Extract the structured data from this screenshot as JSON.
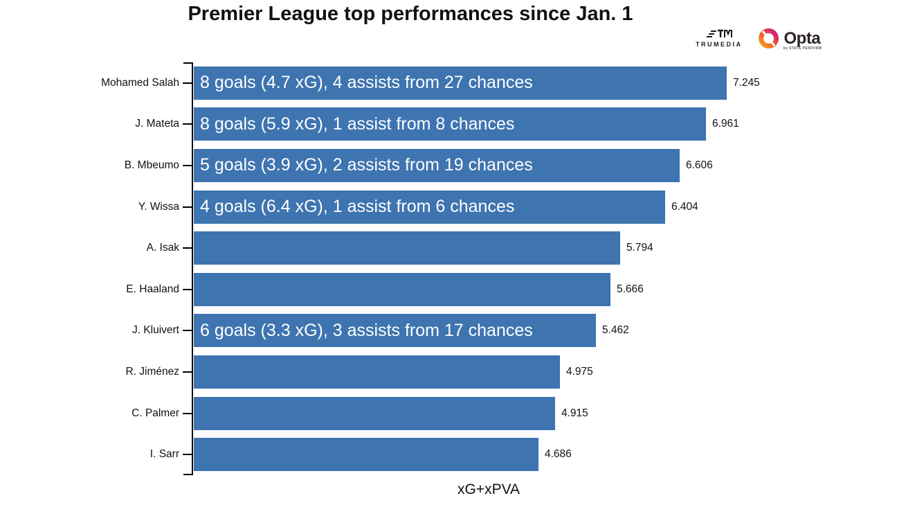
{
  "title": "Premier League top performances since Jan. 1",
  "branding": {
    "trumedia_label": "TRUMEDIA",
    "opta_label": "Opta",
    "opta_sub": "by STATS PERFORM"
  },
  "chart_data": {
    "type": "bar",
    "orientation": "horizontal",
    "title": "Premier League top performances since Jan. 1",
    "xlabel": "xG+xPVA",
    "ylabel": "",
    "xlim": [
      0,
      7.245
    ],
    "grid": false,
    "bar_color": "#3e74b0",
    "annotation_color": "#ffffff",
    "categories": [
      "Mohamed Salah",
      "J. Mateta",
      "B. Mbeumo",
      "Y. Wissa",
      "A. Isak",
      "E. Haaland",
      "J. Kluivert",
      "R. Jiménez",
      "C. Palmer",
      "I. Sarr"
    ],
    "values": [
      7.245,
      6.961,
      6.606,
      6.404,
      5.794,
      5.666,
      5.462,
      4.975,
      4.915,
      4.686
    ],
    "players": [
      {
        "name": "Mohamed Salah",
        "value": 7.245,
        "value_label": "7.245",
        "annotation": "8 goals (4.7 xG), 4 assists from 27 chances"
      },
      {
        "name": "J. Mateta",
        "value": 6.961,
        "value_label": "6.961",
        "annotation": "8 goals (5.9 xG), 1 assist from 8 chances"
      },
      {
        "name": "B. Mbeumo",
        "value": 6.606,
        "value_label": "6.606",
        "annotation": "5 goals (3.9 xG), 2 assists from 19 chances"
      },
      {
        "name": "Y. Wissa",
        "value": 6.404,
        "value_label": "6.404",
        "annotation": "4 goals (6.4 xG), 1 assist from 6 chances"
      },
      {
        "name": "A. Isak",
        "value": 5.794,
        "value_label": "5.794",
        "annotation": ""
      },
      {
        "name": "E. Haaland",
        "value": 5.666,
        "value_label": "5.666",
        "annotation": ""
      },
      {
        "name": "J. Kluivert",
        "value": 5.462,
        "value_label": "5.462",
        "annotation": "6 goals (3.3 xG), 3 assists from 17 chances"
      },
      {
        "name": "R. Jiménez",
        "value": 4.975,
        "value_label": "4.975",
        "annotation": ""
      },
      {
        "name": "C. Palmer",
        "value": 4.915,
        "value_label": "4.915",
        "annotation": ""
      },
      {
        "name": "I. Sarr",
        "value": 4.686,
        "value_label": "4.686",
        "annotation": ""
      }
    ]
  }
}
